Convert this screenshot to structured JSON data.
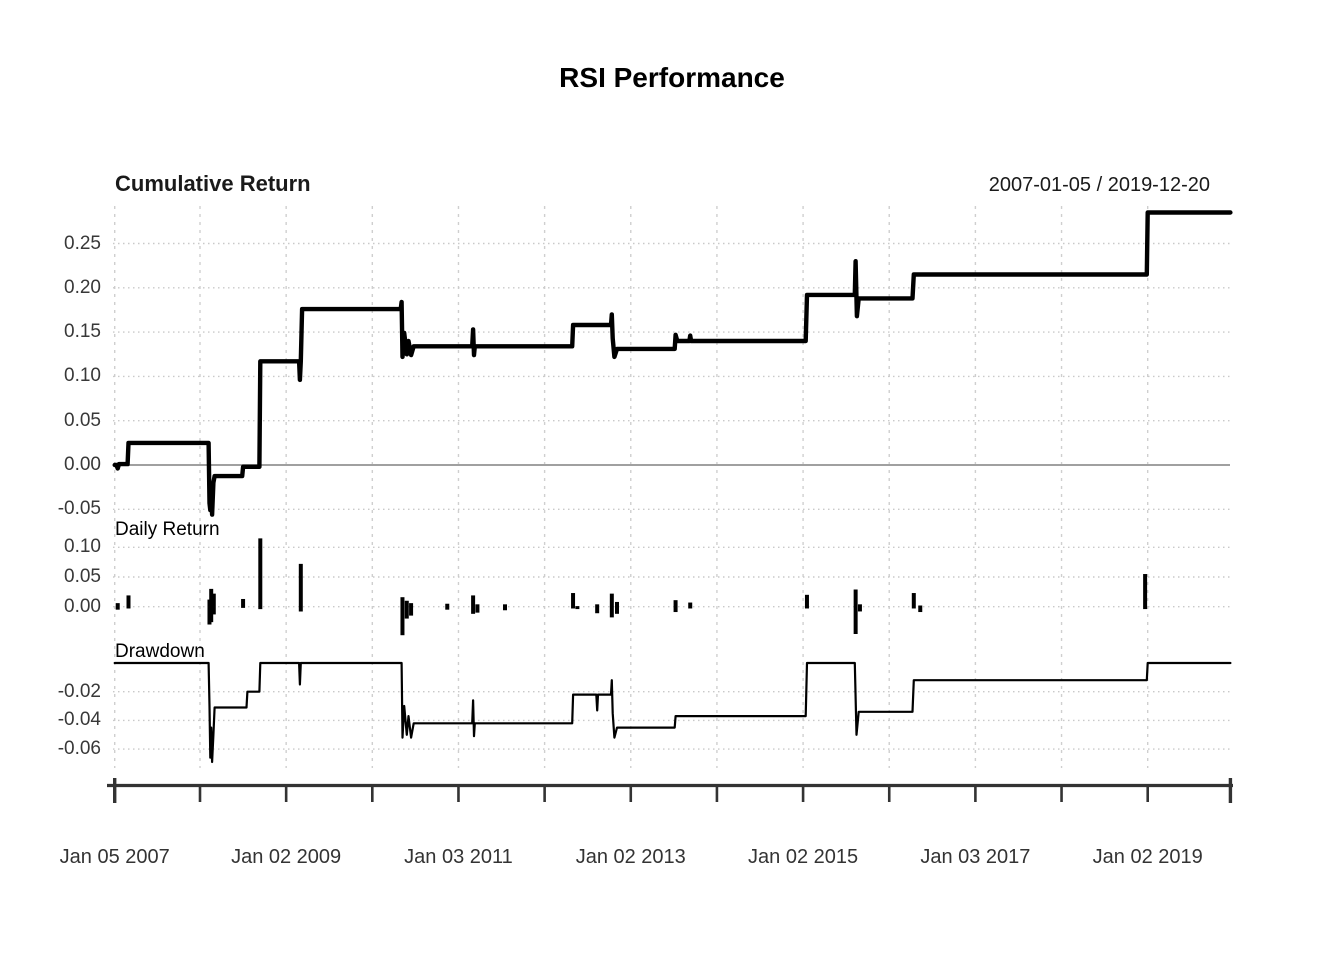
{
  "header": {
    "title": "RSI Performance"
  },
  "panels": {
    "cumulative": {
      "label": "Cumulative Return",
      "date_range": "2007-01-05 / 2019-12-20"
    },
    "daily": {
      "label": "Daily Return"
    },
    "drawdown": {
      "label": "Drawdown"
    }
  },
  "colors": {
    "series": "#000000",
    "grid_h": "#c9c9c9",
    "grid_v": "#cfcfcf",
    "zero_line": "#a0a0a0",
    "axis": "#333333",
    "text": "#333333"
  },
  "x_axis": {
    "xlim": [
      2007.01,
      2019.96
    ],
    "year_ticks": [
      2008,
      2009,
      2010,
      2011,
      2012,
      2013,
      2014,
      2015,
      2016,
      2017,
      2018,
      2019
    ],
    "gridline_years": [
      2007.01,
      2008,
      2009,
      2010,
      2011,
      2012,
      2013,
      2014,
      2015,
      2016,
      2017,
      2018,
      2019
    ],
    "labeled_ticks": [
      {
        "x": 2007.01,
        "label": "Jan 05 2007"
      },
      {
        "x": 2009,
        "label": "Jan 02 2009"
      },
      {
        "x": 2011,
        "label": "Jan 03 2011"
      },
      {
        "x": 2013,
        "label": "Jan 02 2013"
      },
      {
        "x": 2015,
        "label": "Jan 02 2015"
      },
      {
        "x": 2017,
        "label": "Jan 03 2017"
      },
      {
        "x": 2019,
        "label": "Jan 02 2019"
      }
    ]
  },
  "chart_data": [
    {
      "type": "line",
      "title": "Cumulative Return",
      "ylabel": "Cumulative Return",
      "yticks": [
        0.25,
        0.2,
        0.15,
        0.1,
        0.05,
        0.0,
        -0.05
      ],
      "ylim": [
        -0.07,
        0.29
      ],
      "grid": true,
      "legend_position": "none",
      "zero_line": true,
      "series": [
        {
          "name": "Cumulative Return",
          "points": [
            [
              2007.01,
              0
            ],
            [
              2007.03,
              0
            ],
            [
              2007.045,
              -0.004
            ],
            [
              2007.06,
              0.001
            ],
            [
              2007.16,
              0.001
            ],
            [
              2007.17,
              0.025
            ],
            [
              2008.1,
              0.025
            ],
            [
              2008.11,
              -0.043
            ],
            [
              2008.12,
              -0.051
            ],
            [
              2008.13,
              -0.028
            ],
            [
              2008.14,
              -0.056
            ],
            [
              2008.155,
              -0.02
            ],
            [
              2008.17,
              -0.0125
            ],
            [
              2008.49,
              -0.0125
            ],
            [
              2008.5,
              -0.002
            ],
            [
              2008.69,
              -0.002
            ],
            [
              2008.7,
              0.117
            ],
            [
              2009.15,
              0.117
            ],
            [
              2009.16,
              0.096
            ],
            [
              2009.17,
              0.117
            ],
            [
              2009.185,
              0.176
            ],
            [
              2010.33,
              0.176
            ],
            [
              2010.34,
              0.184
            ],
            [
              2010.35,
              0.122
            ],
            [
              2010.37,
              0.149
            ],
            [
              2010.4,
              0.125
            ],
            [
              2010.42,
              0.14
            ],
            [
              2010.45,
              0.124
            ],
            [
              2010.48,
              0.134
            ],
            [
              2011.16,
              0.134
            ],
            [
              2011.17,
              0.153
            ],
            [
              2011.18,
              0.124
            ],
            [
              2011.19,
              0.134
            ],
            [
              2012.32,
              0.134
            ],
            [
              2012.33,
              0.158
            ],
            [
              2012.77,
              0.158
            ],
            [
              2012.78,
              0.17
            ],
            [
              2012.79,
              0.143
            ],
            [
              2012.81,
              0.122
            ],
            [
              2012.84,
              0.131
            ],
            [
              2013.51,
              0.131
            ],
            [
              2013.52,
              0.147
            ],
            [
              2013.54,
              0.14
            ],
            [
              2013.68,
              0.14
            ],
            [
              2013.69,
              0.146
            ],
            [
              2013.7,
              0.14
            ],
            [
              2015.03,
              0.14
            ],
            [
              2015.045,
              0.192
            ],
            [
              2015.6,
              0.192
            ],
            [
              2015.61,
              0.23
            ],
            [
              2015.625,
              0.168
            ],
            [
              2015.645,
              0.188
            ],
            [
              2016.27,
              0.188
            ],
            [
              2016.285,
              0.215
            ],
            [
              2018.99,
              0.215
            ],
            [
              2019.0,
              0.285
            ],
            [
              2019.96,
              0.285
            ]
          ]
        }
      ]
    },
    {
      "type": "bar",
      "title": "Daily Return",
      "ylabel": "Daily Return",
      "yticks": [
        0.1,
        0.05,
        0.0
      ],
      "ylim": [
        -0.07,
        0.133
      ],
      "grid": true,
      "legend_position": "none",
      "zero_line": false,
      "spikes": [
        [
          2007.045,
          -0.005,
          0.006
        ],
        [
          2007.17,
          -0.003,
          0.019
        ],
        [
          2008.11,
          -0.03,
          0.012
        ],
        [
          2008.13,
          -0.026,
          0.03
        ],
        [
          2008.16,
          -0.013,
          0.022
        ],
        [
          2008.5,
          -0.002,
          0.013
        ],
        [
          2008.7,
          -0.004,
          0.115
        ],
        [
          2009.17,
          -0.008,
          0.072
        ],
        [
          2010.35,
          -0.048,
          0.016
        ],
        [
          2010.4,
          -0.02,
          0.01
        ],
        [
          2010.45,
          -0.015,
          0.006
        ],
        [
          2010.87,
          -0.005,
          0.005
        ],
        [
          2011.17,
          -0.012,
          0.019
        ],
        [
          2011.22,
          -0.01,
          0.004
        ],
        [
          2011.54,
          -0.006,
          0.004
        ],
        [
          2012.33,
          -0.003,
          0.023
        ],
        [
          2012.38,
          -0.004,
          0.001
        ],
        [
          2012.61,
          -0.011,
          0.004
        ],
        [
          2012.78,
          -0.018,
          0.022
        ],
        [
          2012.84,
          -0.012,
          0.008
        ],
        [
          2013.52,
          -0.009,
          0.011
        ],
        [
          2013.69,
          -0.003,
          0.007
        ],
        [
          2015.045,
          -0.003,
          0.02
        ],
        [
          2015.61,
          -0.046,
          0.029
        ],
        [
          2015.66,
          -0.008,
          0.004
        ],
        [
          2016.285,
          -0.003,
          0.023
        ],
        [
          2016.36,
          -0.009,
          0.002
        ],
        [
          2018.97,
          -0.004,
          0.055
        ]
      ]
    },
    {
      "type": "line",
      "title": "Drawdown",
      "ylabel": "Drawdown",
      "yticks": [
        -0.02,
        -0.04,
        -0.06
      ],
      "ylim": [
        -0.073,
        0.008
      ],
      "grid": true,
      "legend_position": "none",
      "zero_line": false,
      "series": [
        {
          "name": "Drawdown",
          "points": [
            [
              2007.01,
              0
            ],
            [
              2008.1,
              0
            ],
            [
              2008.11,
              -0.03
            ],
            [
              2008.12,
              -0.066
            ],
            [
              2008.13,
              -0.045
            ],
            [
              2008.14,
              -0.069
            ],
            [
              2008.155,
              -0.05
            ],
            [
              2008.17,
              -0.031
            ],
            [
              2008.54,
              -0.031
            ],
            [
              2008.55,
              -0.02
            ],
            [
              2008.69,
              -0.02
            ],
            [
              2008.7,
              0
            ],
            [
              2009.15,
              0
            ],
            [
              2009.16,
              -0.015
            ],
            [
              2009.17,
              0
            ],
            [
              2010.34,
              0
            ],
            [
              2010.35,
              -0.052
            ],
            [
              2010.37,
              -0.03
            ],
            [
              2010.4,
              -0.05
            ],
            [
              2010.42,
              -0.037
            ],
            [
              2010.45,
              -0.052
            ],
            [
              2010.48,
              -0.042
            ],
            [
              2011.16,
              -0.042
            ],
            [
              2011.17,
              -0.026
            ],
            [
              2011.18,
              -0.051
            ],
            [
              2011.19,
              -0.042
            ],
            [
              2012.32,
              -0.042
            ],
            [
              2012.33,
              -0.022
            ],
            [
              2012.6,
              -0.022
            ],
            [
              2012.61,
              -0.033
            ],
            [
              2012.62,
              -0.022
            ],
            [
              2012.77,
              -0.022
            ],
            [
              2012.78,
              -0.012
            ],
            [
              2012.79,
              -0.035
            ],
            [
              2012.81,
              -0.052
            ],
            [
              2012.84,
              -0.045
            ],
            [
              2013.51,
              -0.045
            ],
            [
              2013.52,
              -0.037
            ],
            [
              2015.03,
              -0.037
            ],
            [
              2015.045,
              0
            ],
            [
              2015.6,
              0
            ],
            [
              2015.62,
              -0.05
            ],
            [
              2015.645,
              -0.034
            ],
            [
              2016.27,
              -0.034
            ],
            [
              2016.285,
              -0.012
            ],
            [
              2018.99,
              -0.012
            ],
            [
              2019.0,
              0
            ],
            [
              2019.96,
              0
            ]
          ]
        }
      ]
    }
  ]
}
